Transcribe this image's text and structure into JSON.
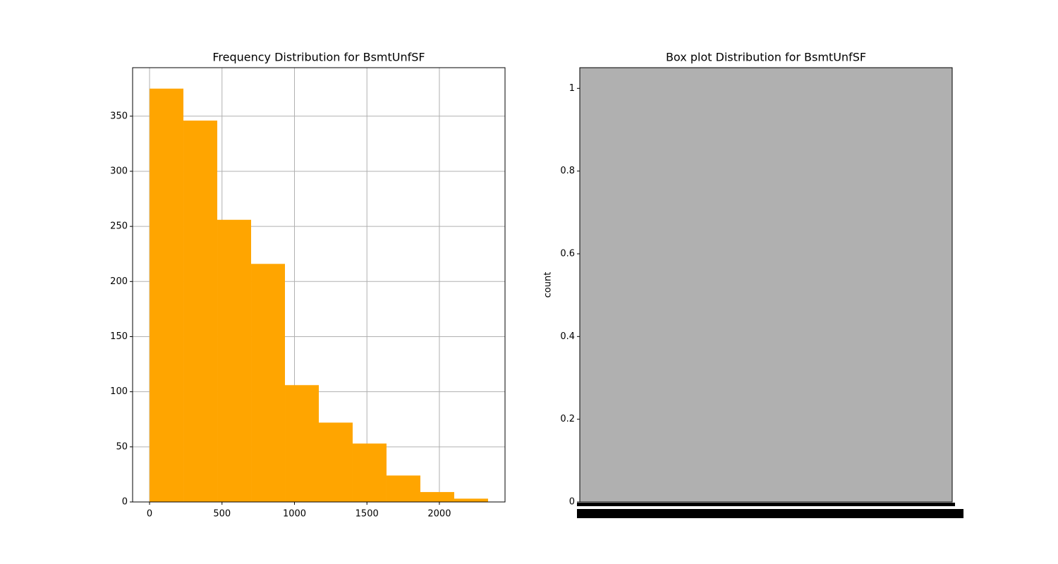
{
  "chart_data": [
    {
      "type": "histogram",
      "title": "Frequency Distribution for BsmtUnfSF",
      "bins": [
        0,
        233.6,
        467.2,
        700.8,
        934.4,
        1168,
        1401.6,
        1635.2,
        1868.8,
        2102.4,
        2336
      ],
      "values": [
        375,
        346,
        256,
        216,
        106,
        72,
        53,
        24,
        9,
        3
      ],
      "color": "#ffa500",
      "xlim": [
        -117,
        2453
      ],
      "xticks": [
        0,
        500,
        1000,
        1500,
        2000
      ],
      "ylim": [
        0,
        394
      ],
      "yticks": [
        0,
        50,
        100,
        150,
        200,
        250,
        300,
        350
      ],
      "grid": true
    },
    {
      "type": "countplot",
      "title": "Box plot Distribution for BsmtUnfSF",
      "ylabel": "count",
      "color": "#b0b0b0",
      "ylim": [
        0,
        1.05
      ],
      "yticks": [
        0.0,
        0.2,
        0.4,
        0.6,
        0.8,
        1.0
      ],
      "grid": false
    }
  ]
}
